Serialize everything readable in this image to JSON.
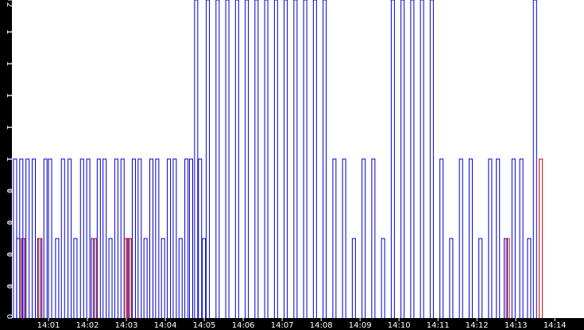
{
  "chart_data": {
    "type": "line",
    "title": "",
    "xlabel": "",
    "ylabel": "",
    "ylim": [
      0,
      2
    ],
    "grid": false,
    "y_tick_values": [
      0,
      0.2,
      0.4,
      0.6,
      0.8,
      1,
      1.2,
      1.4,
      1.6,
      1.8,
      2
    ],
    "y_tick_labels": [
      "0",
      "0",
      "0",
      "0",
      "0",
      "1",
      "1",
      "1",
      "1",
      "1",
      "2"
    ],
    "x_tick_labels": [
      "14:01",
      "14:02",
      "14:03",
      "14:04",
      "14:05",
      "14:06",
      "14:07",
      "14:08",
      "14:09",
      "14:10",
      "14:11",
      "14:12",
      "14:13",
      "14:14"
    ],
    "x_tick_minutes": [
      1,
      2,
      3,
      4,
      5,
      6,
      7,
      8,
      9,
      10,
      11,
      12,
      13,
      14
    ],
    "xlim_minutes": [
      0.06,
      14.75
    ],
    "series": [
      {
        "color": "#0000cc",
        "x_minutes": [
          0.1,
          0.18,
          0.26,
          0.33,
          0.42,
          0.58,
          0.72,
          0.88,
          1.0,
          1.18,
          1.33,
          1.5,
          1.65,
          1.82,
          1.98,
          2.1,
          2.25,
          2.4,
          2.55,
          2.7,
          2.86,
          3.0,
          3.15,
          3.3,
          3.45,
          3.6,
          3.75,
          3.9,
          4.05,
          4.2,
          4.35,
          4.5,
          4.62,
          4.75,
          4.85,
          4.95,
          5.05,
          5.3,
          5.55,
          5.8,
          6.05,
          6.3,
          6.55,
          6.8,
          7.05,
          7.3,
          7.55,
          7.8,
          8.05,
          8.3,
          8.55,
          8.8,
          9.05,
          9.3,
          9.55,
          9.8,
          10.05,
          10.3,
          10.55,
          10.8,
          11.05,
          11.3,
          11.55,
          11.8,
          12.05,
          12.3,
          12.5,
          12.7,
          12.9,
          13.1,
          13.3,
          13.45
        ],
        "y": [
          1,
          0.5,
          1,
          0.5,
          1,
          1,
          0.5,
          1,
          1,
          0.5,
          1,
          1,
          0.5,
          1,
          1,
          0.5,
          1,
          1,
          0.5,
          1,
          1,
          0.5,
          1,
          1,
          0.5,
          1,
          1,
          0.5,
          1,
          1,
          0.5,
          1,
          1,
          2,
          1,
          0.5,
          2,
          2,
          2,
          2,
          2,
          2,
          2,
          2,
          2,
          2,
          2,
          2,
          2,
          1,
          1,
          0.5,
          1,
          1,
          0.5,
          2,
          2,
          2,
          2,
          2,
          1,
          0.5,
          1,
          1,
          0.5,
          1,
          1,
          0.5,
          1,
          1,
          0.5,
          2
        ]
      },
      {
        "color": "#cc0000",
        "x_minutes": [
          0.3,
          0.75,
          2.15,
          2.95,
          3.05,
          12.75,
          13.6
        ],
        "y": [
          0.5,
          0.5,
          0.5,
          0.5,
          0.5,
          0.5,
          1
        ]
      }
    ]
  }
}
